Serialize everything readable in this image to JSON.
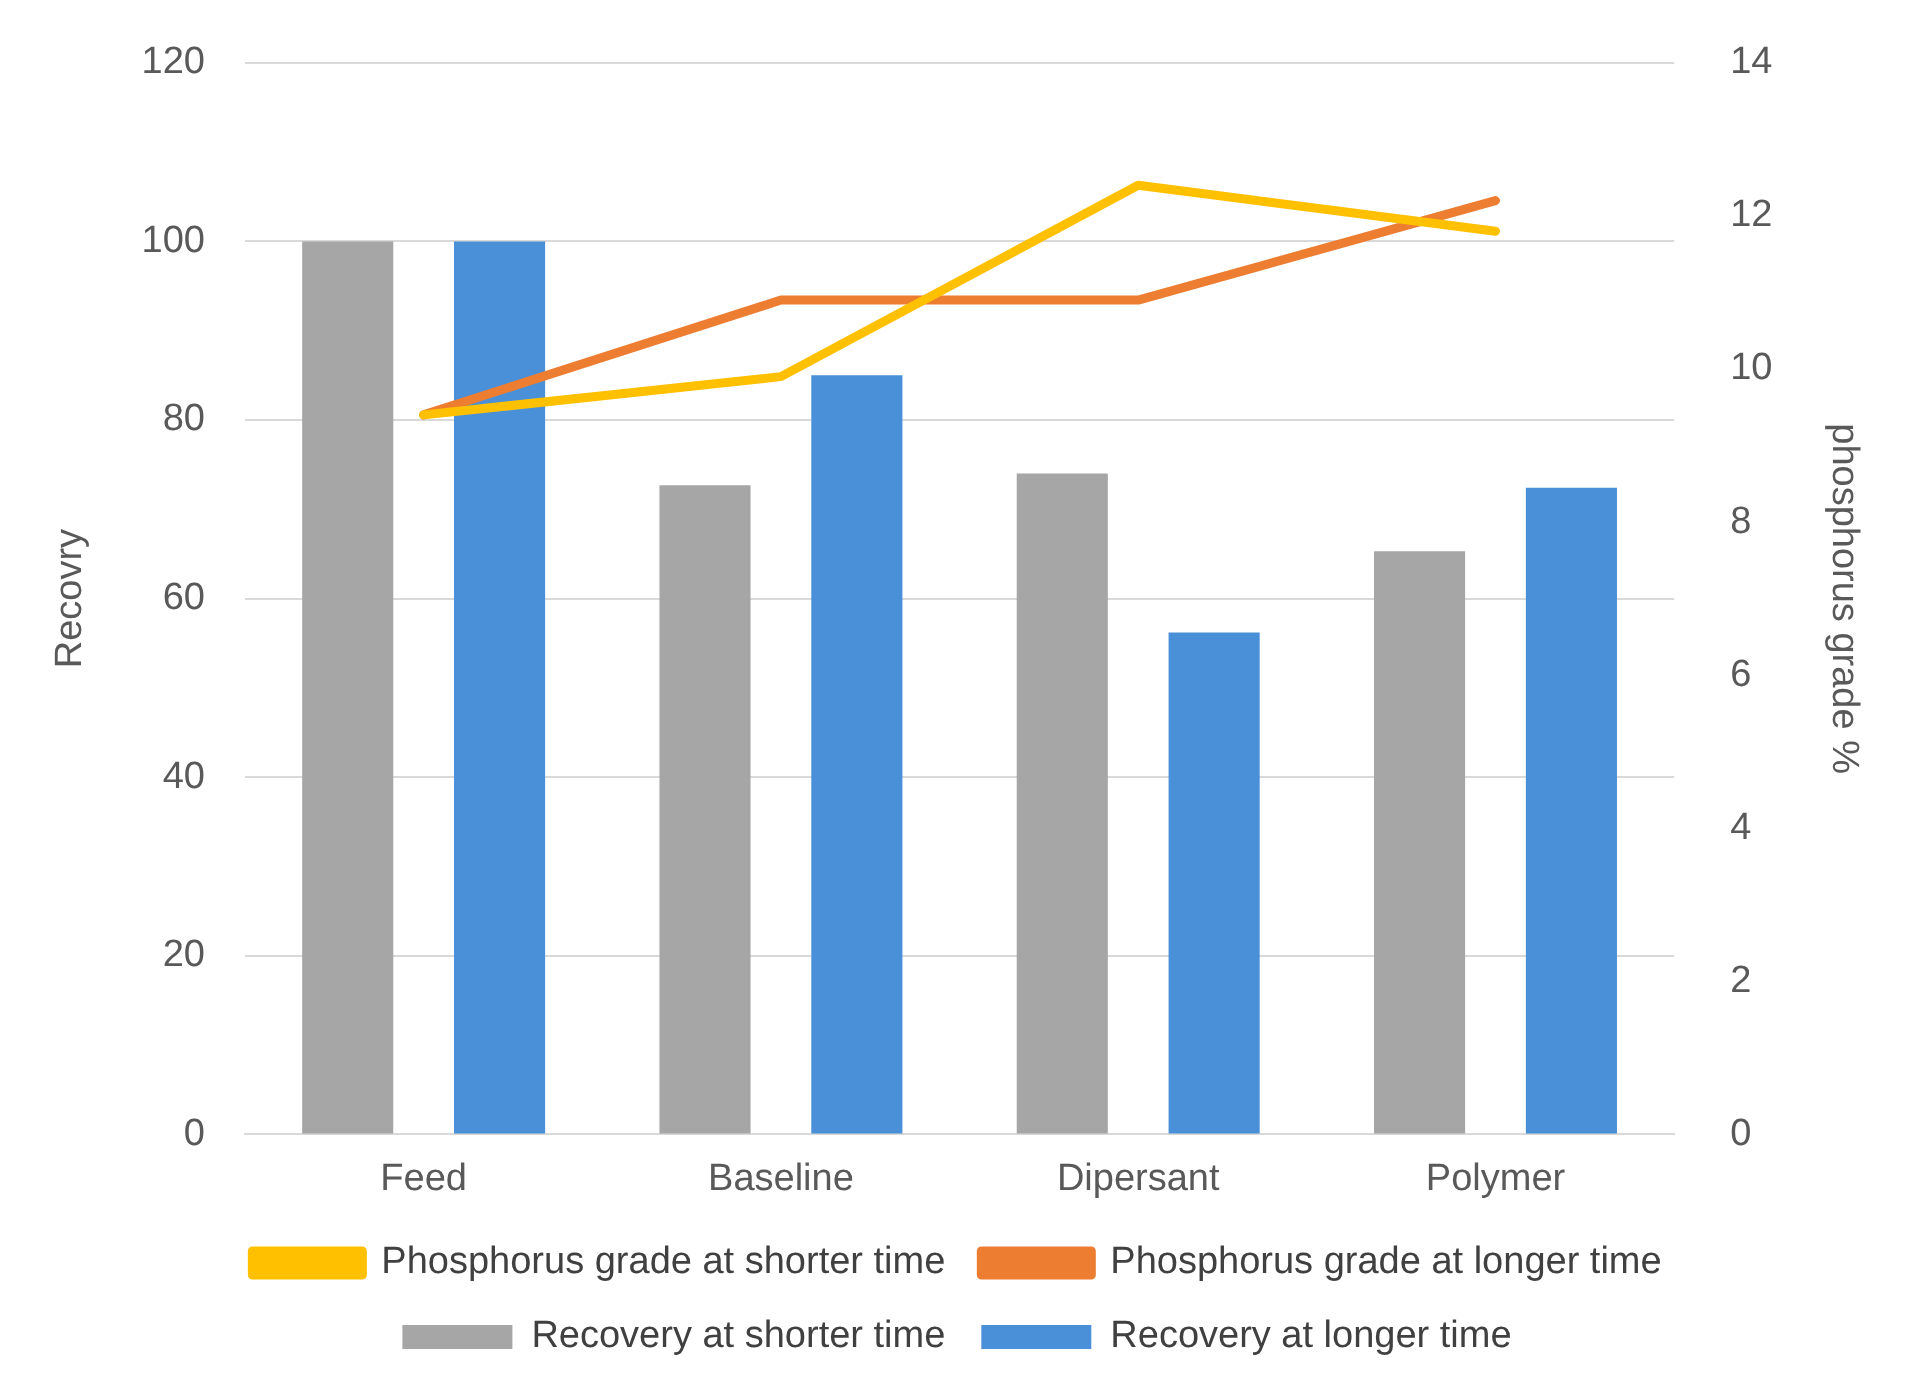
{
  "chart_data": {
    "type": "bar",
    "ylabel": "Recovry",
    "y2label": "phosphorus grade %",
    "categories": [
      "Feed",
      "Baseline",
      "Dipersant",
      "Polymer"
    ],
    "series": [
      {
        "name": "Recovery at shorter time",
        "color": "#a6a6a6",
        "values": [
          100,
          72.7,
          74,
          65.3
        ]
      },
      {
        "name": "Recovery at longer time",
        "color": "#4a90d9",
        "values": [
          100,
          85,
          56.2,
          72.4
        ]
      },
      {
        "name": "Phosphorus grade at shorter time",
        "type": "line",
        "axis": "y2",
        "color": "#ffc000",
        "values": [
          9.4,
          9.9,
          12.4,
          11.8
        ]
      },
      {
        "name": "Phosphorus grade at longer time",
        "type": "line",
        "axis": "y2",
        "color": "#ed7d31",
        "values": [
          9.4,
          10.9,
          10.9,
          12.2
        ]
      }
    ],
    "ylim": [
      0,
      120
    ],
    "yticks": [
      0,
      20,
      40,
      60,
      80,
      100,
      120
    ],
    "y2lim": [
      0,
      14
    ],
    "y2ticks": [
      0,
      2,
      4,
      6,
      8,
      10,
      12,
      14
    ],
    "grid": "y",
    "legend": "bottom",
    "marker": "none",
    "line_style": "solid"
  }
}
